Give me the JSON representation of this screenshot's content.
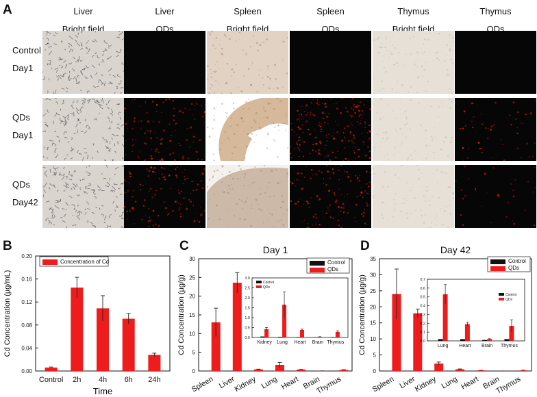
{
  "panel_labels": [
    "A",
    "B",
    "C",
    "D"
  ],
  "panel_a": {
    "columns": [
      {
        "line1": "Liver",
        "line2": "Bright field",
        "type": "bf",
        "tint": "#d9d4ce",
        "dot": "#4a4a55"
      },
      {
        "line1": "Liver",
        "line2": "QDs",
        "type": "fl"
      },
      {
        "line1": "Spleen",
        "line2": "Bright field",
        "type": "bf",
        "tint": "#e2d2c4",
        "dot": "#8d6e58"
      },
      {
        "line1": "Spleen",
        "line2": "QDs",
        "type": "fl"
      },
      {
        "line1": "Thymus",
        "line2": "Bright field",
        "type": "bf",
        "tint": "#e6e0d6",
        "dot": "#b8ac9c"
      },
      {
        "line1": "Thymus",
        "line2": "QDs",
        "type": "fl"
      }
    ],
    "rows": [
      {
        "line1": "Control",
        "line2": "Day1",
        "signal": [
          0,
          0,
          0
        ]
      },
      {
        "line1": "QDs",
        "line2": "Day1",
        "signal": [
          0.45,
          0.8,
          0.2
        ]
      },
      {
        "line1": "QDs",
        "line2": "Day42",
        "signal": [
          0.5,
          0.5,
          0.12
        ]
      }
    ]
  },
  "chart_data": [
    {
      "panel": "B",
      "type": "bar",
      "categories": [
        "Control",
        "2h",
        "4h",
        "6h",
        "24h"
      ],
      "series": [
        {
          "name": "Concentration of Cd",
          "values": [
            0.006,
            0.145,
            0.109,
            0.091,
            0.028
          ],
          "errors": [
            0.001,
            0.018,
            0.022,
            0.009,
            0.003
          ],
          "color": "#ee1c1c"
        }
      ],
      "ylim": [
        0,
        0.2
      ],
      "yticks": [
        "0.00",
        "0.04",
        "0.08",
        "0.12",
        "0.16",
        "0.20"
      ],
      "xlabel": "Time",
      "ylabel": "Cd Concentration (µg/mL)",
      "legend_position": "top-left"
    },
    {
      "panel": "C",
      "type": "bar",
      "title": "Day 1",
      "categories": [
        "Spleen",
        "Liver",
        "Kidney",
        "Lung",
        "Heart",
        "Brain",
        "Thymus"
      ],
      "series": [
        {
          "name": "Control",
          "values": [
            0,
            0,
            0.05,
            0.03,
            0.02,
            0.01,
            0.02
          ],
          "errors": [
            0,
            0,
            0,
            0,
            0,
            0,
            0
          ],
          "color": "#111111"
        },
        {
          "name": "QDs",
          "values": [
            13.0,
            23.6,
            0.42,
            1.65,
            0.38,
            0.03,
            0.28
          ],
          "errors": [
            3.8,
            2.7,
            0.08,
            0.65,
            0.04,
            0.01,
            0.06
          ],
          "color": "#ee1c1c"
        }
      ],
      "ylim": [
        0,
        30
      ],
      "yticks": [
        "0",
        "5",
        "10",
        "15",
        "20",
        "25",
        "30"
      ],
      "xlabel": "",
      "ylabel": "Cd Concentration (µg/g)",
      "legend_position": "top-right",
      "inset": {
        "categories": [
          "Kidney",
          "Lung",
          "Heart",
          "Brain",
          "Thymus"
        ],
        "ylim": [
          0,
          3.0
        ],
        "yticks": [
          "0.0",
          "0.5",
          "1.0",
          "1.5",
          "2.0",
          "2.5",
          "3.0"
        ],
        "legend": [
          "Control",
          "QDs"
        ]
      }
    },
    {
      "panel": "D",
      "type": "bar",
      "title": "Day 42",
      "categories": [
        "Spleen",
        "Liver",
        "Kidney",
        "Lung",
        "Heart",
        "Brain",
        "Thymus"
      ],
      "series": [
        {
          "name": "Control",
          "values": [
            0,
            0,
            0.05,
            0.02,
            0.02,
            0.01,
            0.02
          ],
          "errors": [
            0,
            0,
            0,
            0,
            0,
            0,
            0
          ],
          "color": "#111111"
        },
        {
          "name": "QDs",
          "values": [
            24.0,
            18.0,
            2.3,
            0.53,
            0.19,
            0.02,
            0.17
          ],
          "errors": [
            7.8,
            1.3,
            0.5,
            0.11,
            0.02,
            0.005,
            0.07
          ],
          "color": "#ee1c1c"
        }
      ],
      "ylim": [
        0,
        35
      ],
      "yticks": [
        "0",
        "5",
        "10",
        "15",
        "20",
        "25",
        "30",
        "35"
      ],
      "xlabel": "",
      "ylabel": "Cd Concentration (µg/g)",
      "legend_position": "top-right",
      "inset": {
        "categories": [
          "Lung",
          "Heart",
          "Brain",
          "Thymus"
        ],
        "ylim": [
          0,
          0.7
        ],
        "yticks": [
          "0.0",
          "0.1",
          "0.2",
          "0.3",
          "0.4",
          "0.5",
          "0.6",
          "0.7"
        ],
        "legend": [
          "Control",
          "QDs"
        ]
      }
    }
  ]
}
